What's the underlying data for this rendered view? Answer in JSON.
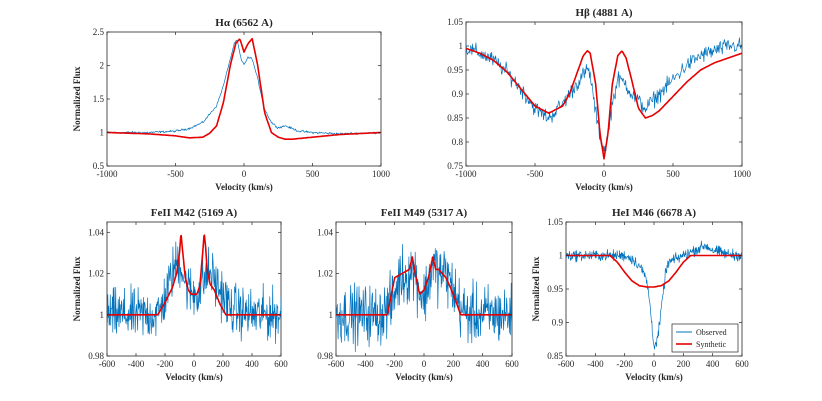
{
  "figure": {
    "colors": {
      "observed": "#0072BD",
      "synthetic": "#E60000",
      "axis": "#262626"
    }
  },
  "chart_data": [
    {
      "type": "line",
      "title": "Hα (6562 A)",
      "xlabel": "Velocity (km/s)",
      "ylabel": "Normalized Flux",
      "xlim": [
        -1000,
        1000
      ],
      "ylim": [
        0.5,
        2.5
      ],
      "xticks": [
        -1000,
        -500,
        0,
        500,
        1000
      ],
      "yticks": [
        0.5,
        1,
        1.5,
        2,
        2.5
      ],
      "grid": false,
      "noise": 0.008,
      "series": [
        {
          "name": "Observed",
          "x": [
            -1000,
            -700,
            -500,
            -400,
            -300,
            -200,
            -150,
            -100,
            -70,
            -50,
            -20,
            0,
            30,
            60,
            100,
            150,
            200,
            250,
            300,
            400,
            500,
            700,
            1000
          ],
          "values": [
            1.0,
            1.0,
            1.02,
            1.06,
            1.15,
            1.4,
            1.7,
            2.1,
            2.33,
            2.38,
            2.08,
            2.02,
            2.12,
            2.1,
            1.8,
            1.35,
            1.15,
            1.07,
            1.1,
            1.02,
            1.0,
            0.98,
            1.0
          ]
        },
        {
          "name": "Synthetic",
          "x": [
            -1000,
            -700,
            -500,
            -400,
            -300,
            -250,
            -200,
            -150,
            -100,
            -60,
            -30,
            0,
            30,
            60,
            100,
            150,
            200,
            250,
            300,
            350,
            500,
            700,
            1000
          ],
          "values": [
            1.0,
            0.98,
            0.95,
            0.92,
            0.93,
            0.99,
            1.1,
            1.45,
            2.0,
            2.33,
            2.4,
            2.2,
            2.33,
            2.4,
            2.0,
            1.3,
            1.0,
            0.93,
            0.9,
            0.9,
            0.93,
            0.97,
            1.0
          ]
        }
      ]
    },
    {
      "type": "line",
      "title": "Hβ (4881 A)",
      "xlabel": "Velocity (km/s)",
      "ylabel": "",
      "xlim": [
        -1000,
        1000
      ],
      "ylim": [
        0.75,
        1.05
      ],
      "xticks": [
        -1000,
        -500,
        0,
        500,
        1000
      ],
      "yticks": [
        0.75,
        0.8,
        0.85,
        0.9,
        0.95,
        1,
        1.05
      ],
      "grid": false,
      "noise": 0.008,
      "series": [
        {
          "name": "Observed",
          "x": [
            -1000,
            -900,
            -800,
            -700,
            -600,
            -500,
            -400,
            -300,
            -200,
            -150,
            -120,
            -100,
            -60,
            -20,
            0,
            20,
            60,
            100,
            150,
            200,
            300,
            400,
            500,
            600,
            700,
            800,
            900,
            1000
          ],
          "values": [
            0.995,
            0.985,
            0.97,
            0.945,
            0.91,
            0.87,
            0.85,
            0.88,
            0.92,
            0.94,
            0.95,
            0.94,
            0.86,
            0.8,
            0.785,
            0.8,
            0.88,
            0.93,
            0.925,
            0.9,
            0.87,
            0.9,
            0.93,
            0.96,
            0.98,
            0.99,
            1.0,
            1.0
          ]
        },
        {
          "name": "Synthetic",
          "x": [
            -1000,
            -900,
            -800,
            -700,
            -600,
            -500,
            -400,
            -300,
            -250,
            -200,
            -150,
            -120,
            -100,
            -60,
            -30,
            0,
            30,
            60,
            100,
            130,
            160,
            200,
            250,
            300,
            350,
            400,
            500,
            600,
            700,
            800,
            900,
            1000
          ],
          "values": [
            0.995,
            0.985,
            0.97,
            0.945,
            0.91,
            0.875,
            0.86,
            0.875,
            0.9,
            0.94,
            0.98,
            0.99,
            0.985,
            0.92,
            0.82,
            0.765,
            0.82,
            0.92,
            0.98,
            0.99,
            0.975,
            0.93,
            0.87,
            0.85,
            0.855,
            0.865,
            0.895,
            0.925,
            0.95,
            0.965,
            0.975,
            0.985
          ]
        }
      ]
    },
    {
      "type": "line",
      "title": "FeII M42 (5169 A)",
      "xlabel": "Velocity (km/s)",
      "ylabel": "Normalized Flux",
      "xlim": [
        -600,
        600
      ],
      "ylim": [
        0.98,
        1.045
      ],
      "xticks": [
        -600,
        -400,
        -200,
        0,
        200,
        400,
        600
      ],
      "yticks": [
        0.98,
        1,
        1.02,
        1.04
      ],
      "grid": false,
      "noise": 0.006,
      "series": [
        {
          "name": "Observed",
          "x": [
            -600,
            -400,
            -250,
            -200,
            -150,
            -120,
            -90,
            -60,
            -30,
            0,
            30,
            60,
            90,
            120,
            150,
            200,
            250,
            400,
            600
          ],
          "values": [
            1.0,
            1.0,
            1.0,
            1.008,
            1.02,
            1.025,
            1.025,
            1.015,
            1.012,
            1.01,
            1.011,
            1.015,
            1.02,
            1.02,
            1.015,
            1.01,
            1.003,
            1.0,
            1.0
          ]
        },
        {
          "name": "Synthetic",
          "x": [
            -600,
            -300,
            -250,
            -200,
            -150,
            -120,
            -100,
            -90,
            -80,
            -60,
            -40,
            -20,
            0,
            20,
            40,
            60,
            70,
            80,
            90,
            110,
            140,
            180,
            220,
            250,
            300,
            600
          ],
          "values": [
            1.0,
            1.0,
            1.0,
            1.006,
            1.013,
            1.02,
            1.03,
            1.04,
            1.032,
            1.018,
            1.012,
            1.01,
            1.01,
            1.01,
            1.014,
            1.03,
            1.04,
            1.033,
            1.022,
            1.015,
            1.012,
            1.005,
            1.0,
            1.0,
            1.0,
            1.0
          ]
        }
      ]
    },
    {
      "type": "line",
      "title": "FeII M49 (5317 A)",
      "xlabel": "Velocity (km/s)",
      "ylabel": "",
      "xlim": [
        -600,
        600
      ],
      "ylim": [
        0.98,
        1.045
      ],
      "xticks": [
        -600,
        -400,
        -200,
        0,
        200,
        400,
        600
      ],
      "yticks": [
        0.98,
        1,
        1.02,
        1.04
      ],
      "grid": false,
      "noise": 0.007,
      "series": [
        {
          "name": "Observed",
          "x": [
            -600,
            -300,
            -220,
            -180,
            -150,
            -120,
            -90,
            -60,
            -30,
            0,
            30,
            60,
            100,
            150,
            200,
            260,
            300,
            600
          ],
          "values": [
            1.0,
            1.0,
            1.005,
            1.015,
            1.02,
            1.018,
            1.022,
            1.02,
            1.012,
            1.008,
            1.015,
            1.025,
            1.02,
            1.02,
            1.012,
            1.002,
            1.0,
            1.0
          ]
        },
        {
          "name": "Synthetic",
          "x": [
            -600,
            -300,
            -250,
            -200,
            -150,
            -100,
            -80,
            -60,
            -30,
            0,
            30,
            60,
            80,
            100,
            150,
            200,
            250,
            300,
            600
          ],
          "values": [
            1.0,
            1.0,
            1.0,
            1.018,
            1.02,
            1.022,
            1.028,
            1.02,
            1.01,
            1.012,
            1.018,
            1.028,
            1.022,
            1.022,
            1.018,
            1.01,
            1.0,
            1.0,
            1.0
          ]
        }
      ]
    },
    {
      "type": "line",
      "title": "HeI M46 (6678 A)",
      "xlabel": "Velocity (km/s)",
      "ylabel": "Normalized Flux",
      "xlim": [
        -600,
        600
      ],
      "ylim": [
        0.85,
        1.05
      ],
      "xticks": [
        -600,
        -400,
        -200,
        0,
        200,
        400,
        600
      ],
      "yticks": [
        0.85,
        0.9,
        0.95,
        1,
        1.05
      ],
      "grid": false,
      "legend": "bottom-right",
      "noise": 0.004,
      "series": [
        {
          "name": "Observed",
          "x": [
            -600,
            -300,
            -200,
            -150,
            -100,
            -60,
            -40,
            -20,
            0,
            20,
            40,
            60,
            80,
            100,
            150,
            200,
            250,
            300,
            350,
            400,
            500,
            600
          ],
          "values": [
            1.0,
            1.0,
            1.0,
            0.995,
            0.985,
            0.97,
            0.95,
            0.91,
            0.865,
            0.87,
            0.9,
            0.94,
            0.975,
            0.99,
            0.995,
            1.0,
            1.005,
            1.01,
            1.015,
            1.008,
            1.002,
            1.0
          ]
        },
        {
          "name": "Synthetic",
          "x": [
            -600,
            -300,
            -250,
            -200,
            -150,
            -100,
            -50,
            0,
            50,
            100,
            150,
            200,
            250,
            300,
            600
          ],
          "values": [
            1.0,
            1.0,
            0.99,
            0.975,
            0.962,
            0.955,
            0.953,
            0.953,
            0.955,
            0.962,
            0.975,
            0.99,
            1.0,
            1.0,
            1.0
          ]
        }
      ]
    }
  ]
}
